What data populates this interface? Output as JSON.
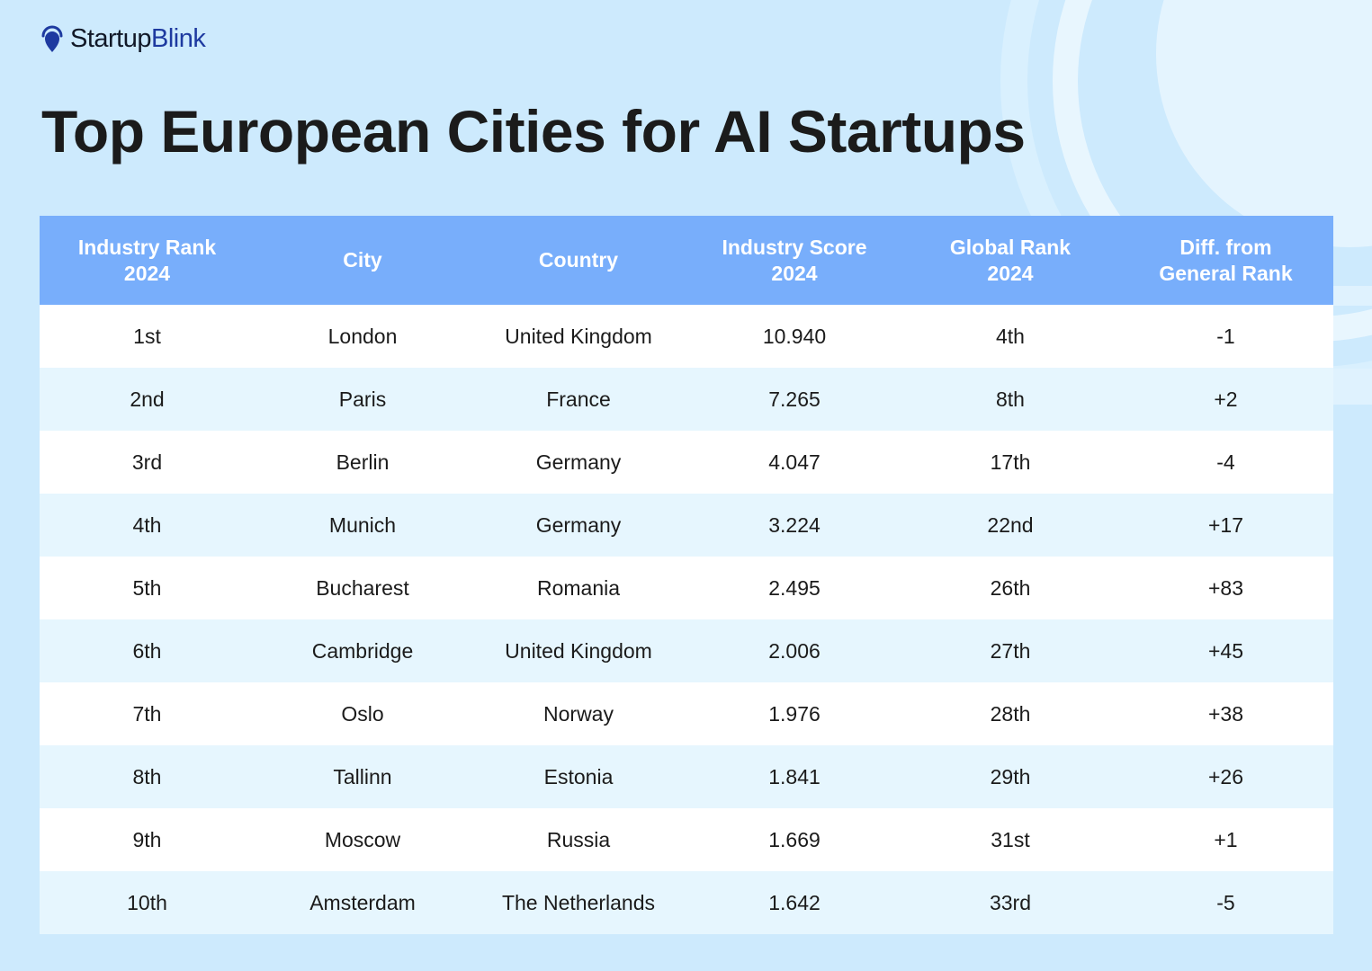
{
  "brand": {
    "name_part1": "Startup",
    "name_part2": "Blink",
    "icon": "location-pin-icon"
  },
  "title": "Top European Cities for AI Startups",
  "colors": {
    "background": "#cdeafd",
    "header": "#78aefb",
    "row_even": "#ffffff",
    "row_odd": "#e6f6fe",
    "brand_blue": "#1e3aa0"
  },
  "table": {
    "headers": [
      [
        "Industry Rank",
        "2024"
      ],
      [
        "City"
      ],
      [
        "Country"
      ],
      [
        "Industry Score",
        "2024"
      ],
      [
        "Global Rank",
        "2024"
      ],
      [
        "Diff. from",
        "General Rank"
      ]
    ],
    "rows": [
      [
        "1st",
        "London",
        "United Kingdom",
        "10.940",
        "4th",
        "-1"
      ],
      [
        "2nd",
        "Paris",
        "France",
        "7.265",
        "8th",
        "+2"
      ],
      [
        "3rd",
        "Berlin",
        "Germany",
        "4.047",
        "17th",
        "-4"
      ],
      [
        "4th",
        "Munich",
        "Germany",
        "3.224",
        "22nd",
        "+17"
      ],
      [
        "5th",
        "Bucharest",
        "Romania",
        "2.495",
        "26th",
        "+83"
      ],
      [
        "6th",
        "Cambridge",
        "United Kingdom",
        "2.006",
        "27th",
        "+45"
      ],
      [
        "7th",
        "Oslo",
        "Norway",
        "1.976",
        "28th",
        "+38"
      ],
      [
        "8th",
        "Tallinn",
        "Estonia",
        "1.841",
        "29th",
        "+26"
      ],
      [
        "9th",
        "Moscow",
        "Russia",
        "1.669",
        "31st",
        "+1"
      ],
      [
        "10th",
        "Amsterdam",
        "The Netherlands",
        "1.642",
        "33rd",
        "-5"
      ]
    ]
  }
}
